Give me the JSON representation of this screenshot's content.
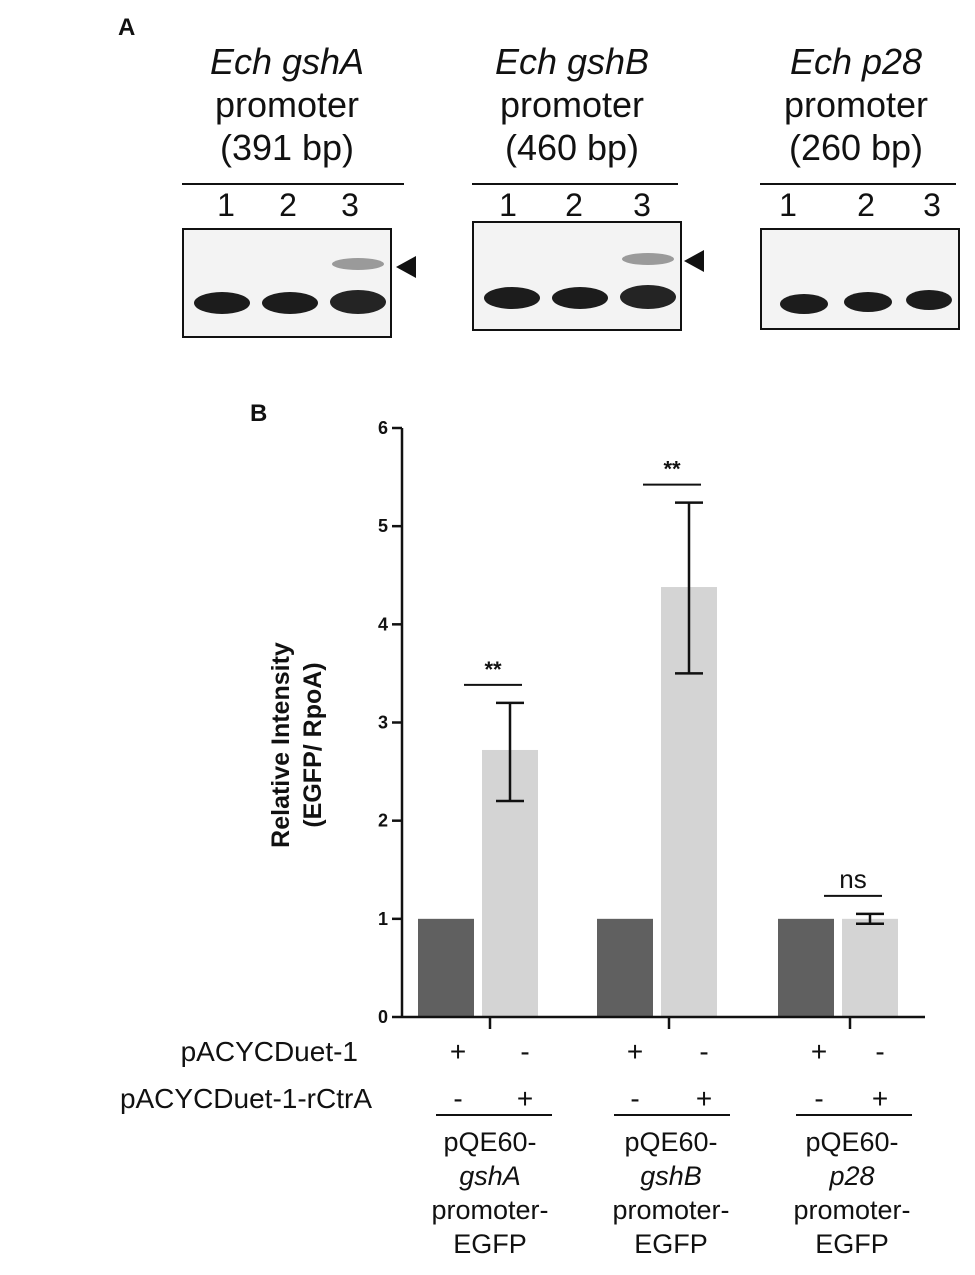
{
  "panel_a": {
    "letter": "A",
    "gels": [
      {
        "gene": "Ech gshA",
        "promoter_word": "promoter",
        "size": "(391 bp)",
        "lanes": [
          "1",
          "2",
          "3"
        ],
        "shifted_band_lane": "3",
        "has_arrow": true
      },
      {
        "gene": "Ech gshB",
        "promoter_word": "promoter",
        "size": "(460 bp)",
        "lanes": [
          "1",
          "2",
          "3"
        ],
        "shifted_band_lane": "3",
        "has_arrow": true
      },
      {
        "gene": "Ech p28",
        "promoter_word": "promoter",
        "size": "(260 bp)",
        "lanes": [
          "1",
          "2",
          "3"
        ],
        "shifted_band_lane": "",
        "has_arrow": false
      }
    ]
  },
  "panel_b": {
    "letter": "B",
    "row_labels": {
      "row1": "pACYCDuet-1",
      "row2": "pACYCDuet-1-rCtrA"
    },
    "groups": [
      {
        "line1": "pQE60-",
        "gene": "gshA",
        "line3": "promoter-",
        "line4": "EGFP",
        "row1": [
          "+",
          "-"
        ],
        "row2": [
          "-",
          "+"
        ]
      },
      {
        "line1": "pQE60-",
        "gene": "gshB",
        "line3": "promoter-",
        "line4": "EGFP",
        "row1": [
          "+",
          "-"
        ],
        "row2": [
          "-",
          "+"
        ]
      },
      {
        "line1": "pQE60-",
        "gene": "p28",
        "line3": "promoter-",
        "line4": "EGFP",
        "row1": [
          "+",
          "-"
        ],
        "row2": [
          "-",
          "+"
        ]
      }
    ]
  },
  "chart_data": {
    "type": "bar",
    "ylabel_line1": "Relative Intensity",
    "ylabel_line2": "(EGFP/ RpoA)",
    "ylim": [
      0,
      6
    ],
    "yticks": [
      "0",
      "1",
      "2",
      "3",
      "4",
      "5",
      "6"
    ],
    "categories": [
      "pQE60-gshA promoter-EGFP",
      "pQE60-gshB promoter-EGFP",
      "pQE60-p28 promoter-EGFP"
    ],
    "series": [
      {
        "values": [
          1.0,
          1.0,
          1.0
        ],
        "errors": [
          0,
          0,
          0
        ],
        "color": "#606060"
      },
      {
        "values": [
          2.72,
          4.38,
          1.0
        ],
        "err_low": [
          2.2,
          3.5,
          0.95
        ],
        "err_high": [
          3.2,
          5.24,
          1.05
        ],
        "color": "#d4d4d4"
      }
    ],
    "significance": [
      "**",
      "**",
      "ns"
    ],
    "grid": false,
    "colors": {
      "dark": "#606060",
      "light": "#d4d4d4",
      "axis": "#111111"
    }
  }
}
